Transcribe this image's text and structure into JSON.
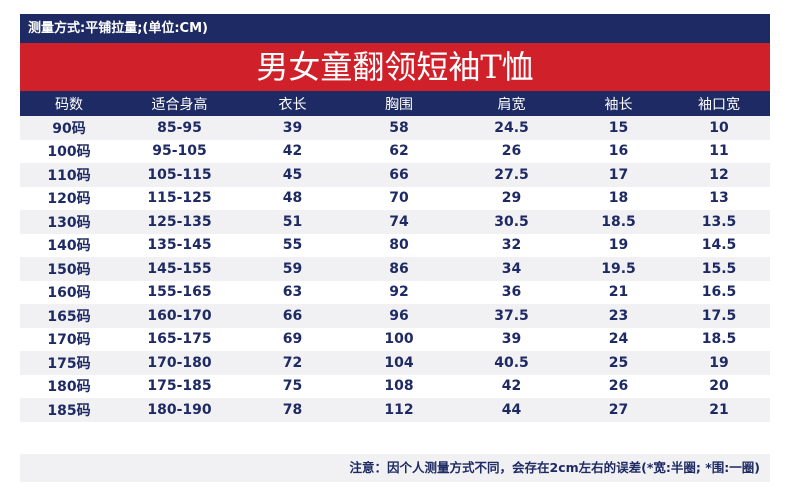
{
  "header": {
    "measure_note": "测量方式:平铺拉量;(单位:CM)",
    "title": "男女童翻领短袖T恤"
  },
  "table": {
    "columns": [
      "码数",
      "适合身高",
      "衣长",
      "胸围",
      "肩宽",
      "袖长",
      "袖口宽"
    ],
    "rows": [
      [
        "90码",
        "85-95",
        "39",
        "58",
        "24.5",
        "15",
        "10"
      ],
      [
        "100码",
        "95-105",
        "42",
        "62",
        "26",
        "16",
        "11"
      ],
      [
        "110码",
        "105-115",
        "45",
        "66",
        "27.5",
        "17",
        "12"
      ],
      [
        "120码",
        "115-125",
        "48",
        "70",
        "29",
        "18",
        "13"
      ],
      [
        "130码",
        "125-135",
        "51",
        "74",
        "30.5",
        "18.5",
        "13.5"
      ],
      [
        "140码",
        "135-145",
        "55",
        "80",
        "32",
        "19",
        "14.5"
      ],
      [
        "150码",
        "145-155",
        "59",
        "86",
        "34",
        "19.5",
        "15.5"
      ],
      [
        "160码",
        "155-165",
        "63",
        "92",
        "36",
        "21",
        "16.5"
      ],
      [
        "165码",
        "160-170",
        "66",
        "96",
        "37.5",
        "23",
        "17.5"
      ],
      [
        "170码",
        "165-175",
        "69",
        "100",
        "39",
        "24",
        "18.5"
      ],
      [
        "175码",
        "170-180",
        "72",
        "104",
        "40.5",
        "25",
        "19"
      ],
      [
        "180码",
        "175-185",
        "75",
        "108",
        "42",
        "26",
        "20"
      ],
      [
        "185码",
        "180-190",
        "78",
        "112",
        "44",
        "27",
        "21"
      ]
    ]
  },
  "footer": {
    "note": "注意：因个人测量方式不同，会存在2cm左右的误差(*宽:半圈; *围:一圈)"
  },
  "colors": {
    "navy": "#1e2a63",
    "red": "#d0202a",
    "row_alt": "#f1f1f3"
  }
}
